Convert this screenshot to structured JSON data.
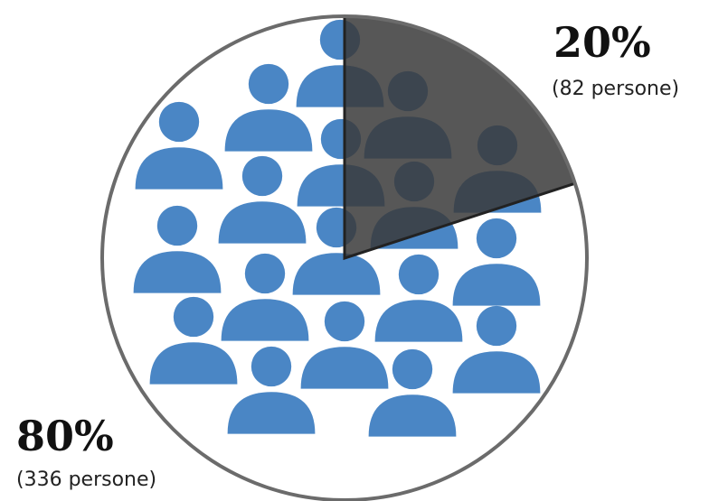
{
  "chart_data": {
    "type": "pie",
    "title": "",
    "slices": [
      {
        "label": "20%",
        "sublabel": "(82 persone)",
        "value": 20,
        "count": 82,
        "color": "#3a3a3a"
      },
      {
        "label": "80%",
        "sublabel": "(336 persone)",
        "value": 80,
        "count": 336,
        "color": "#ffffff"
      }
    ],
    "start_angle_deg": 0,
    "direction": "clockwise",
    "outline_color": "#6b6b6b",
    "icon": "person-icon",
    "icon_color": "#4a86c5"
  }
}
